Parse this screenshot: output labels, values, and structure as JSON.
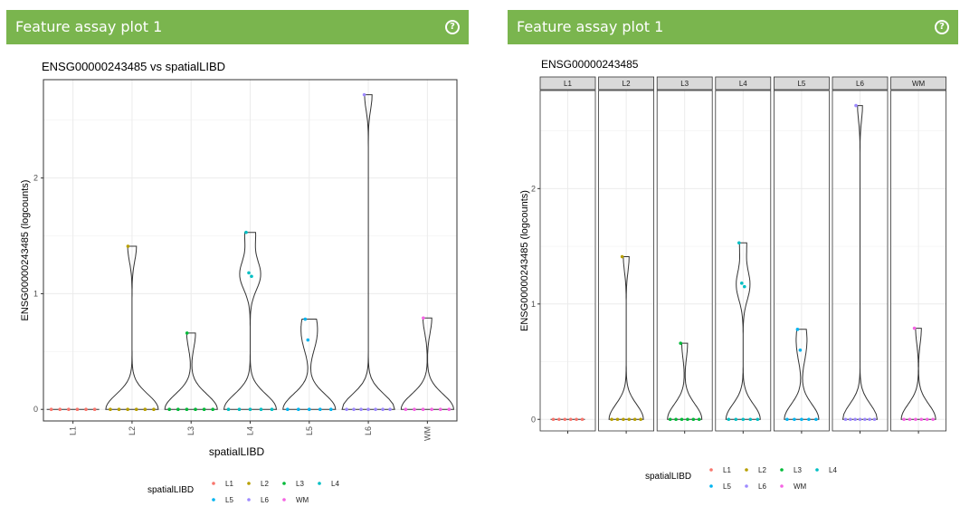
{
  "colors": {
    "header_bg": "#7ab54e",
    "L1": "#f8766d",
    "L2": "#b79f00",
    "L3": "#00ba38",
    "L4": "#00bfc4",
    "L5": "#00b4f0",
    "L6": "#9e8aff",
    "WM": "#f564e3"
  },
  "left_panel": {
    "title": "Feature assay plot 1",
    "help_icon": "?"
  },
  "right_panel": {
    "title": "Feature assay plot 1",
    "help_icon": "?"
  },
  "chart_data": [
    {
      "type": "violin",
      "title": "ENSG00000243485 vs spatialLIBD",
      "xlabel": "spatialLIBD",
      "ylabel": "ENSG00000243485 (logcounts)",
      "categories": [
        "L1",
        "L2",
        "L3",
        "L4",
        "L5",
        "L6",
        "WM"
      ],
      "yticks": [
        "0",
        "1",
        "2"
      ],
      "ylim": [
        -0.1,
        2.85
      ],
      "grid": true,
      "legend": {
        "title": "spatialLIBD",
        "position": "bottom",
        "entries": [
          "L1",
          "L2",
          "L3",
          "L4",
          "L5",
          "L6",
          "WM"
        ]
      },
      "series": [
        {
          "category": "L1",
          "points": [
            0,
            0,
            0,
            0,
            0,
            0
          ]
        },
        {
          "category": "L2",
          "points": [
            1.41,
            0,
            0,
            0,
            0,
            0,
            0
          ]
        },
        {
          "category": "L3",
          "points": [
            0.66,
            0,
            0,
            0,
            0,
            0,
            0
          ]
        },
        {
          "category": "L4",
          "points": [
            1.53,
            1.18,
            1.15,
            0,
            0,
            0,
            0,
            0
          ]
        },
        {
          "category": "L5",
          "points": [
            0.78,
            0.6,
            0,
            0,
            0,
            0,
            0
          ]
        },
        {
          "category": "L6",
          "points": [
            2.72,
            0,
            0,
            0,
            0,
            0,
            0,
            0
          ]
        },
        {
          "category": "WM",
          "points": [
            0.79,
            0,
            0,
            0,
            0,
            0,
            0
          ]
        }
      ]
    },
    {
      "type": "violin-facet",
      "title": "ENSG00000243485",
      "xlabel": "",
      "ylabel": "ENSG00000243485 (logcounts)",
      "facets": [
        "L1",
        "L2",
        "L3",
        "L4",
        "L5",
        "L6",
        "WM"
      ],
      "yticks": [
        "0",
        "1",
        "2"
      ],
      "ylim": [
        -0.1,
        2.85
      ],
      "grid": true,
      "legend": {
        "title": "spatialLIBD",
        "position": "bottom",
        "entries": [
          "L1",
          "L2",
          "L3",
          "L4",
          "L5",
          "L6",
          "WM"
        ]
      },
      "series": [
        {
          "category": "L1",
          "points": [
            0,
            0,
            0,
            0,
            0,
            0
          ]
        },
        {
          "category": "L2",
          "points": [
            1.41,
            0,
            0,
            0,
            0,
            0,
            0
          ]
        },
        {
          "category": "L3",
          "points": [
            0.66,
            0,
            0,
            0,
            0,
            0,
            0
          ]
        },
        {
          "category": "L4",
          "points": [
            1.53,
            1.18,
            1.15,
            0,
            0,
            0,
            0,
            0
          ]
        },
        {
          "category": "L5",
          "points": [
            0.78,
            0.6,
            0,
            0,
            0,
            0,
            0
          ]
        },
        {
          "category": "L6",
          "points": [
            2.72,
            0,
            0,
            0,
            0,
            0,
            0,
            0
          ]
        },
        {
          "category": "WM",
          "points": [
            0.79,
            0,
            0,
            0,
            0,
            0,
            0
          ]
        }
      ]
    }
  ]
}
